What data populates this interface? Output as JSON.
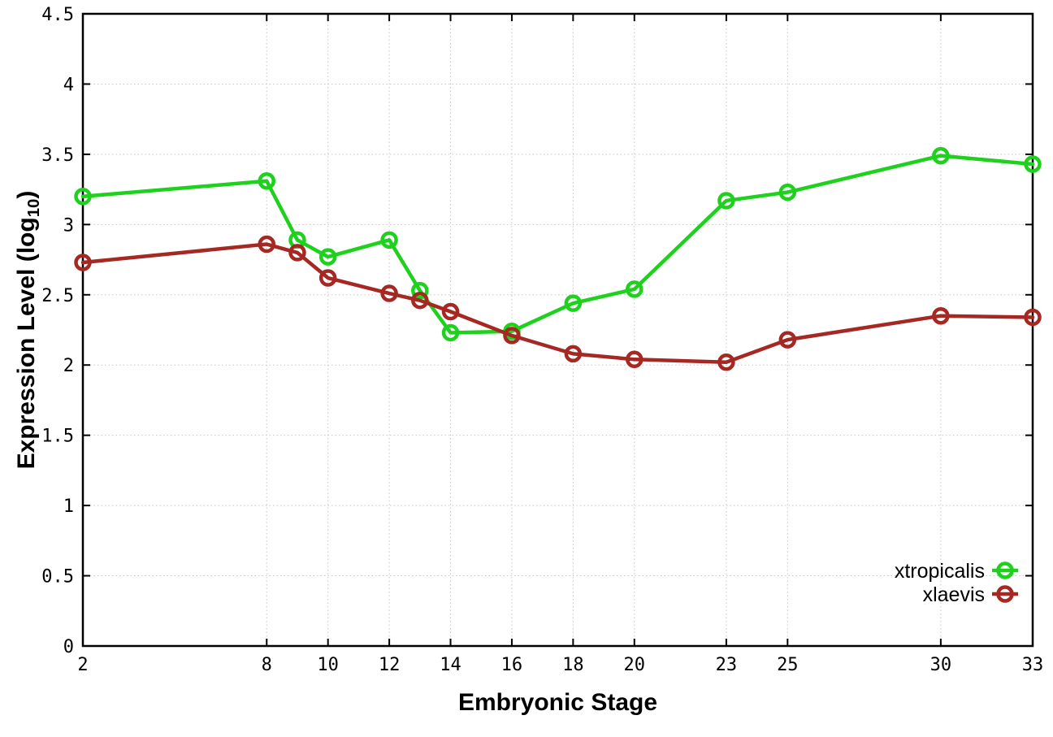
{
  "page": {
    "background": "#ffffff"
  },
  "axis_titles": {
    "x": "Embryonic Stage",
    "y_main": "Expression Level (log",
    "y_sub": "10",
    "y_close": ")"
  },
  "legend": {
    "position": "inside-bottom-right",
    "entries": [
      {
        "label": "xtropicalis",
        "color": "#1dd11d"
      },
      {
        "label": "xlaevis",
        "color": "#a52823"
      }
    ]
  },
  "style": {
    "background": "#ffffff",
    "border_color": "#000000",
    "grid_color": "#c6c6c6",
    "tick_color": "#000000",
    "tick_label_color": "#000000",
    "legend_text_color": "#000000",
    "line_width": 4.5,
    "marker_radius": 8.5,
    "marker_stroke": 4.5
  },
  "chart_data": {
    "type": "line",
    "title": "",
    "xlabel": "Embryonic Stage",
    "ylabel": "Expression Level (log10)",
    "x": [
      2,
      8,
      9,
      10,
      12,
      13,
      14,
      16,
      18,
      20,
      23,
      25,
      30,
      33
    ],
    "series": [
      {
        "name": "xtropicalis",
        "color": "#1dd11d",
        "marker": "open-circle",
        "values": [
          3.2,
          3.31,
          2.89,
          2.77,
          2.89,
          2.53,
          2.23,
          2.24,
          2.44,
          2.54,
          3.17,
          3.23,
          3.49,
          3.43
        ]
      },
      {
        "name": "xlaevis",
        "color": "#a52823",
        "marker": "open-circle",
        "values": [
          2.73,
          2.86,
          2.8,
          2.62,
          2.51,
          2.46,
          2.38,
          2.21,
          2.08,
          2.04,
          2.02,
          2.18,
          2.35,
          2.34
        ]
      }
    ],
    "xlim": [
      2,
      33
    ],
    "ylim": [
      0,
      4.5
    ],
    "xticks": [
      2,
      8,
      10,
      12,
      14,
      16,
      18,
      20,
      23,
      25,
      30,
      33
    ],
    "yticks": [
      0,
      0.5,
      1,
      1.5,
      2,
      2.5,
      3,
      3.5,
      4,
      4.5
    ],
    "grid": true,
    "grid_style": "dotted",
    "legend_position": "inside-bottom-right"
  }
}
